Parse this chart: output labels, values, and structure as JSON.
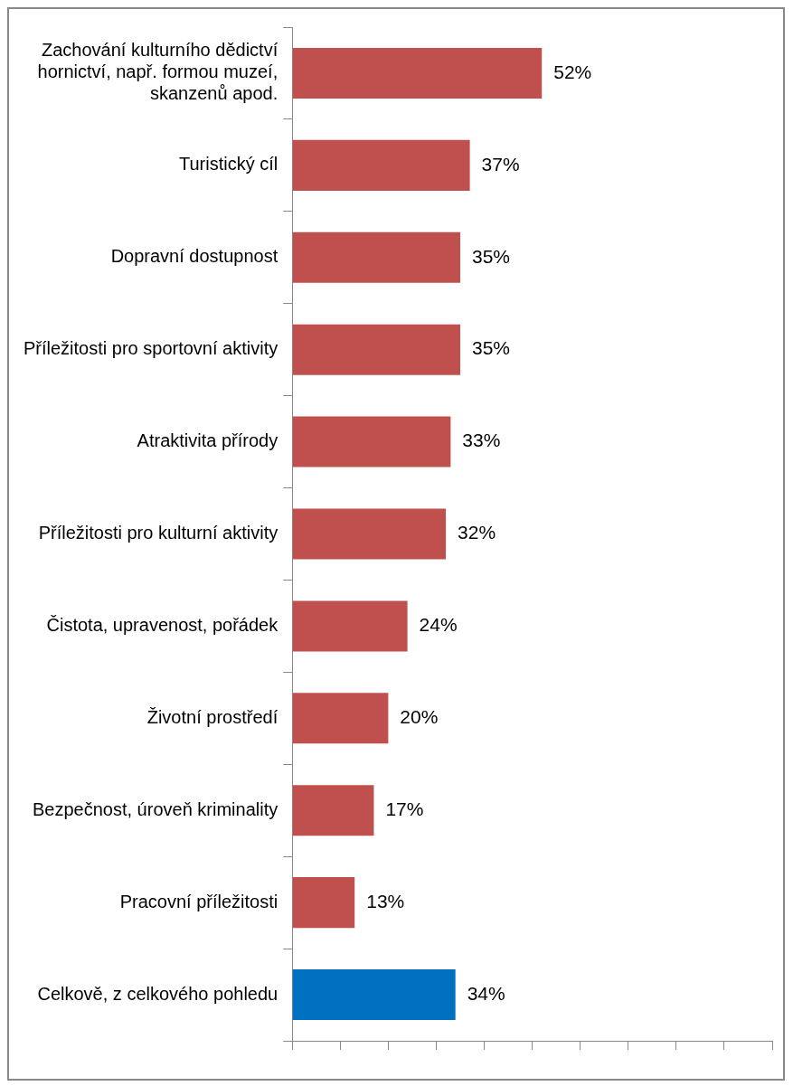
{
  "chart_data": {
    "type": "bar",
    "orientation": "horizontal",
    "categories": [
      "Zachování kulturního dědictví hornictví, např. formou muzeí, skanzenů apod.",
      "Turistický cíl",
      "Dopravní dostupnost",
      "Příležitosti pro sportovní aktivity",
      "Atraktivita přírody",
      "Příležitosti pro kulturní aktivity",
      "Čistota, upravenost, pořádek",
      "Životní prostředí",
      "Bezpečnost, úroveň kriminality",
      "Pracovní příležitosti",
      "Celkově, z celkového pohledu"
    ],
    "values": [
      52,
      37,
      35,
      35,
      33,
      32,
      24,
      20,
      17,
      13,
      34
    ],
    "value_labels": [
      "52%",
      "37%",
      "35%",
      "35%",
      "33%",
      "32%",
      "24%",
      "20%",
      "17%",
      "13%",
      "34%"
    ],
    "colors": [
      "#c0504d",
      "#c0504d",
      "#c0504d",
      "#c0504d",
      "#c0504d",
      "#c0504d",
      "#c0504d",
      "#c0504d",
      "#c0504d",
      "#c0504d",
      "#0070c0"
    ],
    "xlim": [
      0,
      100
    ],
    "xticks": [
      {
        "value": 0,
        "label": null
      },
      {
        "value": 10,
        "label": null
      },
      {
        "value": 20,
        "label": null
      },
      {
        "value": 30,
        "label": null
      },
      {
        "value": 40,
        "label": null
      },
      {
        "value": 50,
        "label": null
      },
      {
        "value": 60,
        "label": null
      },
      {
        "value": 70,
        "label": null
      },
      {
        "value": 80,
        "label": null
      },
      {
        "value": 90,
        "label": null
      },
      {
        "value": 100,
        "label": null
      }
    ],
    "tick_labels": "y",
    "grid": false,
    "legend": false
  }
}
